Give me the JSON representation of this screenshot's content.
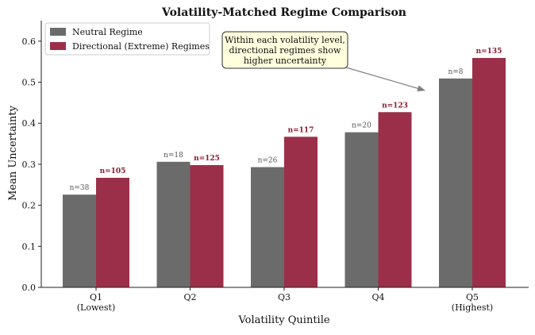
{
  "chart_data": {
    "type": "bar",
    "title": "Volatility-Matched Regime Comparison",
    "xlabel": "Volatility Quintile",
    "ylabel": "Mean Uncertainty",
    "ylim": [
      0,
      0.65
    ],
    "yticks": [
      "0.0",
      "0.1",
      "0.2",
      "0.3",
      "0.4",
      "0.5",
      "0.6"
    ],
    "categories": [
      {
        "label": "Q1",
        "sublabel": "(Lowest)"
      },
      {
        "label": "Q2",
        "sublabel": ""
      },
      {
        "label": "Q3",
        "sublabel": ""
      },
      {
        "label": "Q4",
        "sublabel": ""
      },
      {
        "label": "Q5",
        "sublabel": "(Highest)"
      }
    ],
    "series": [
      {
        "name": "Neutral Regime",
        "color": "#6b6b6b",
        "label_color": "#555555",
        "label_weight": "normal",
        "values": [
          0.226,
          0.306,
          0.293,
          0.378,
          0.509
        ],
        "counts": [
          "n=38",
          "n=18",
          "n=26",
          "n=20",
          "n=8"
        ]
      },
      {
        "name": "Directional (Extreme) Regimes",
        "color": "#9b2f4a",
        "label_color": "#8b1a30",
        "label_weight": "bold",
        "values": [
          0.267,
          0.298,
          0.367,
          0.427,
          0.559
        ],
        "counts": [
          "n=105",
          "n=125",
          "n=117",
          "n=123",
          "n=135"
        ]
      }
    ],
    "legend_position": "top-left",
    "grid": false,
    "annotation": {
      "lines": [
        "Within each volatility level,",
        "directional regimes show",
        "higher uncertainty"
      ],
      "box_color": "#ffffdd",
      "arrow_target": {
        "category_index": 4,
        "y": 0.48
      }
    }
  }
}
